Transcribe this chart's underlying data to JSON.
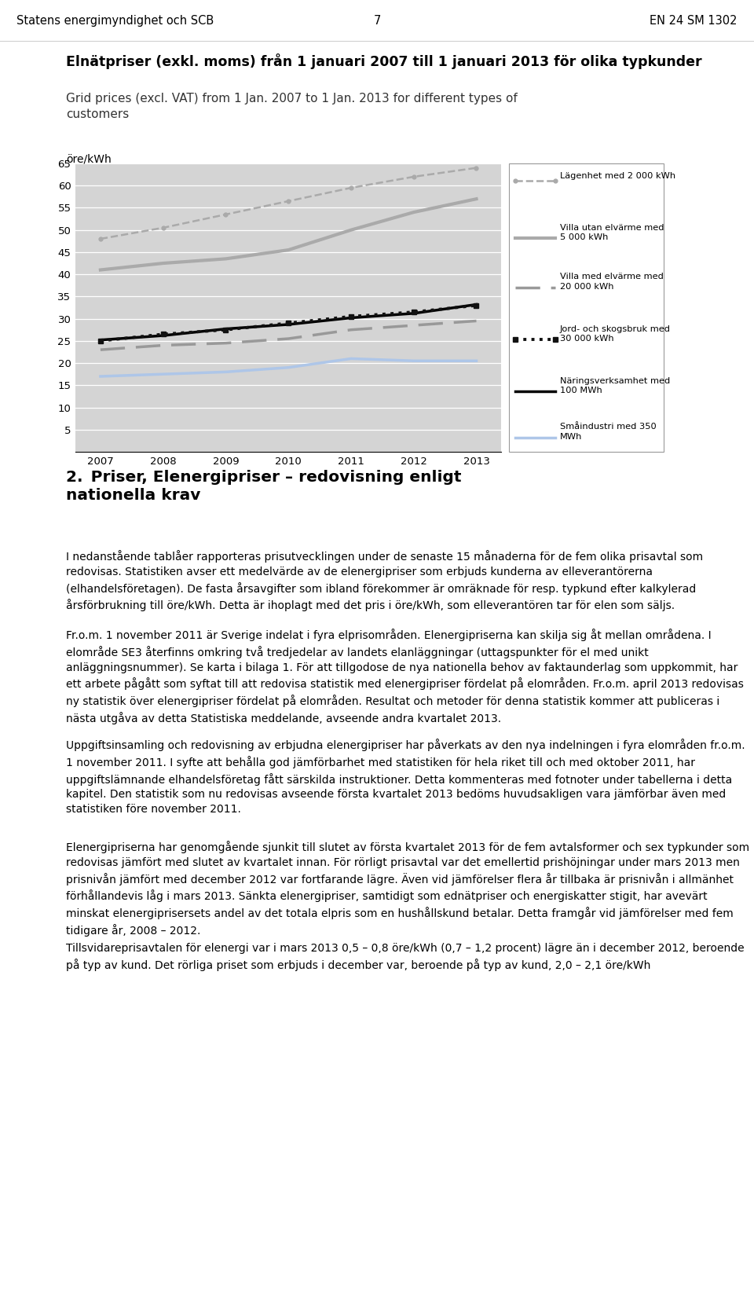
{
  "years": [
    2007,
    2008,
    2009,
    2010,
    2011,
    2012,
    2013
  ],
  "series": {
    "lagenhet": {
      "label": "Lägenhet med 2 000 kWh",
      "color": "#aaaaaa",
      "linestyle": "--",
      "linewidth": 1.8,
      "marker": "o",
      "markersize": 3.5,
      "values": [
        48.0,
        50.5,
        53.5,
        56.5,
        59.5,
        62.0,
        64.0
      ]
    },
    "villa_utan": {
      "label": "Villa utan elvärme med\n5 000 kWh",
      "color": "#aaaaaa",
      "linestyle": "-",
      "linewidth": 3.0,
      "marker": null,
      "markersize": 0,
      "values": [
        41.0,
        42.5,
        43.5,
        45.5,
        50.0,
        54.0,
        57.0
      ]
    },
    "villa_med": {
      "label": "Villa med elvärme med\n20 000 kWh",
      "color": "#999999",
      "linestyle": "--",
      "linewidth": 2.5,
      "dashes": [
        10,
        4
      ],
      "marker": null,
      "markersize": 0,
      "values": [
        23.0,
        24.0,
        24.5,
        25.5,
        27.5,
        28.5,
        29.5
      ]
    },
    "jord": {
      "label": "Jord- och skogsbruk med\n30 000 kWh",
      "color": "#111111",
      "linestyle": ":",
      "linewidth": 2.8,
      "marker": "s",
      "markersize": 4,
      "values": [
        25.0,
        26.5,
        27.5,
        29.0,
        30.5,
        31.5,
        33.0
      ]
    },
    "narings": {
      "label": "Näringsverksamhet med\n100 MWh",
      "color": "#000000",
      "linestyle": "-",
      "linewidth": 2.5,
      "marker": null,
      "markersize": 0,
      "values": [
        25.2,
        26.2,
        27.7,
        28.7,
        30.2,
        31.2,
        33.2
      ]
    },
    "smaindustri": {
      "label": "Småindustri med 350\nMWh",
      "color": "#aec6e8",
      "linestyle": "-",
      "linewidth": 2.5,
      "marker": null,
      "markersize": 0,
      "values": [
        17.0,
        17.5,
        18.0,
        19.0,
        21.0,
        20.5,
        20.5
      ]
    }
  },
  "ylabel": "öre/kWh",
  "ylim": [
    0,
    65
  ],
  "yticks": [
    0,
    5,
    10,
    15,
    20,
    25,
    30,
    35,
    40,
    45,
    50,
    55,
    60,
    65
  ],
  "xlim": [
    2006.6,
    2013.4
  ],
  "xticks": [
    2007,
    2008,
    2009,
    2010,
    2011,
    2012,
    2013
  ],
  "bg_color": "#d4d4d4",
  "fig_bg": "#ffffff",
  "grid_color": "#ffffff",
  "header_left": "Statens energimyndighet och SCB",
  "header_center": "7",
  "header_right": "EN 24 SM 1302",
  "title_sv": "Elnätpriser (exkl. moms) från 1 januari 2007 till 1 januari 2013 för olika typkunder",
  "title_en": "Grid prices (excl. VAT) from 1 Jan. 2007 to 1 Jan. 2013 for different types of customers",
  "section_title": "2. Priser, Elenergipriser – redovisning enligt nationella krav",
  "para1": "I nedanstående tablåer rapporteras prisutvecklingen under de senaste 15 månaderna för de fem olika prisavtal som redovisas. Statistiken avser ett medelvärde av de elenergipriser som erbjuds kunderna av elleverantörerna (elhandelsföretagen). De fasta årsavgifter som ibland förekommer är omräknade för resp. typkund efter kalkylerad årsförbrukning till öre/kWh. Detta är ihoplagt med det pris i öre/kWh, som elleverantören tar för elen som säljs.",
  "para2": "Fr.o.m. 1 november 2011 är Sverige indelat i fyra elprisområden. Elenergipriserna kan skilja sig åt mellan områdena. I elområde SE3 återfinns omkring två tredjedelar av landets elanläggningar (uttagspunkter för el med unikt anläggningsnummer). Se karta i bilaga 1. För att tillgodose de nya nationella behov av faktaunderlag som uppkommit, har ett arbete pågått som syftat till att redovisa statistik med elenergipriser fördelat på elområden. Fr.o.m. april 2013 redovisas ny statistik över elenergipriser fördelat på elområden. Resultat och metoder för denna statistik kommer att publiceras i nästa utgåva av detta Statistiska meddelande, avseende andra kvartalet 2013.",
  "para3": "Uppgiftsinsamling och redovisning av erbjudna elenergipriser har påverkats av den nya indelningen i fyra elområden fr.o.m. 1 november 2011. I syfte att behålla god jämförbarhet med statistiken för hela riket till och med oktober 2011, har uppgiftslämnande elhandelsföretag fått särskilda instruktioner. Detta kommenteras med fotnoter under tabellerna i detta kapitel. Den statistik som nu redovisas avseende första kvartalet 2013 bedöms huvudsakligen vara jämförbar även med statistiken före november 2011.",
  "para4": "Elenergipriserna har genomgående sjunkit till slutet av första kvartalet 2013 för de fem avtalsformer och sex typkunder som redovisas jämfört med slutet av kvartalet innan. För rörligt prisavtal var det emellertid prishöjningar under mars 2013 men prisnivån jämfört med december 2012 var fortfarande lägre. Även vid jämförelser flera år tillbaka är prisnivån i allmänhet förhållandevis låg i mars 2013. Sänkta elenergipriser, samtidigt som ednätpriser och energiskatter stigit, har avevärt minskat elenergiprisersets andel av det totala elpris som en hushållskund betalar. Detta framgår vid jämförelser med fem tidigare år, 2008 – 2012.",
  "para5": "Tillsvidareprisavtalen för elenergi var i mars 2013 0,5 – 0,8 öre/kWh (0,7 – 1,2 procent) lägre än i december 2012, beroende på typ av kund. Det rörliga priset som erbjuds i december var, beroende på typ av kund, 2,0 – 2,1 öre/kWh"
}
